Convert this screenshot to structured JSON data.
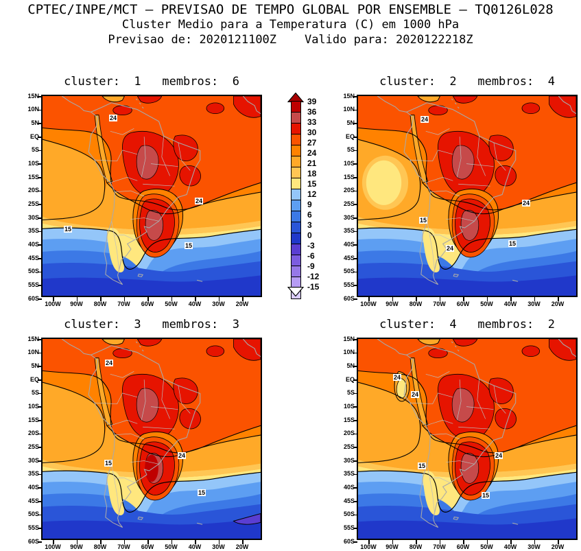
{
  "header": {
    "line1": "CPTEC/INPE/MCT — PREVISAO DE TEMPO GLOBAL POR ENSEMBLE — TQ0126L028",
    "line2": "Cluster Medio para a Temperatura (C) em 1000 hPa",
    "line3": "Previsao de: 2020121100Z    Valido para: 2020122218Z"
  },
  "chart_data": {
    "type": "heatmap",
    "subtype": "filled-contour-map-ensemble-clusters",
    "variable": "Temperatura (C) em 1000 hPa",
    "units": "C",
    "region": "South America",
    "contour_interval": 3,
    "grid": false,
    "legend_position": "center-between-left-and-right-panels",
    "axes": {
      "lat_labels": [
        "15N",
        "10N",
        "5N",
        "EQ",
        "5S",
        "10S",
        "15S",
        "20S",
        "25S",
        "30S",
        "35S",
        "40S",
        "45S",
        "50S",
        "55S",
        "60S"
      ],
      "lon_labels": [
        "100W",
        "90W",
        "80W",
        "70W",
        "60W",
        "50W",
        "40W",
        "30W",
        "20W"
      ],
      "lat_range": [
        "15N",
        "60S"
      ],
      "lon_range": [
        "100W",
        "10W"
      ]
    },
    "colorbar": {
      "levels": [
        "39",
        "36",
        "33",
        "30",
        "27",
        "24",
        "21",
        "18",
        "15",
        "12",
        "9",
        "6",
        "3",
        "0",
        "-3",
        "-6",
        "-9",
        "-12",
        "-15"
      ],
      "band_colors": [
        "#bf0000",
        "#c64a4a",
        "#e61400",
        "#fb5300",
        "#ff8200",
        "#ffa928",
        "#ffc654",
        "#ffe77e",
        "#94c6f9",
        "#5d9ef2",
        "#3c79e6",
        "#2a55d8",
        "#2038ca",
        "#5a3ed2",
        "#7c5ce0",
        "#9678e8",
        "#b69cf4",
        "#d9ccfb"
      ],
      "arrow_top_color": "#a80000",
      "arrow_bottom_color": "#ffffff",
      "outline_color": "#000000"
    },
    "map_colors": {
      "coastline": "#a9a9a9",
      "borders": "#bdbdbd",
      "contour_line": "#000000",
      "frame": "#000000"
    },
    "panels": [
      {
        "id": "cluster-1",
        "cluster": "1",
        "members": "6",
        "title": "cluster:  1   membros:  6",
        "extra": "p1",
        "contour_labels": [
          {
            "t": "24",
            "x": 0.32,
            "y": 0.108
          },
          {
            "t": "24",
            "x": 0.708,
            "y": 0.519
          },
          {
            "t": "15",
            "x": 0.115,
            "y": 0.658
          },
          {
            "t": "15",
            "x": 0.661,
            "y": 0.739
          }
        ]
      },
      {
        "id": "cluster-2",
        "cluster": "2",
        "members": "4",
        "title": "cluster:  2   membros:  4",
        "extra": "p2",
        "contour_labels": [
          {
            "t": "24",
            "x": 0.3,
            "y": 0.115
          },
          {
            "t": "24",
            "x": 0.76,
            "y": 0.53
          },
          {
            "t": "15",
            "x": 0.295,
            "y": 0.614
          },
          {
            "t": "24",
            "x": 0.415,
            "y": 0.753
          },
          {
            "t": "15",
            "x": 0.698,
            "y": 0.729
          }
        ]
      },
      {
        "id": "cluster-3",
        "cluster": "3",
        "members": "3",
        "title": "cluster:  3   membros:  3",
        "extra": "p3",
        "contour_labels": [
          {
            "t": "24",
            "x": 0.301,
            "y": 0.119
          },
          {
            "t": "24",
            "x": 0.63,
            "y": 0.576
          },
          {
            "t": "15",
            "x": 0.298,
            "y": 0.614
          },
          {
            "t": "15",
            "x": 0.72,
            "y": 0.759
          }
        ]
      },
      {
        "id": "cluster-4",
        "cluster": "4",
        "members": "2",
        "title": "cluster:  4   membros:  2",
        "extra": "p4",
        "contour_labels": [
          {
            "t": "24",
            "x": 0.178,
            "y": 0.19
          },
          {
            "t": "24",
            "x": 0.258,
            "y": 0.275
          },
          {
            "t": "15",
            "x": 0.289,
            "y": 0.627
          },
          {
            "t": "24",
            "x": 0.637,
            "y": 0.576
          },
          {
            "t": "15",
            "x": 0.578,
            "y": 0.773
          }
        ]
      }
    ]
  }
}
